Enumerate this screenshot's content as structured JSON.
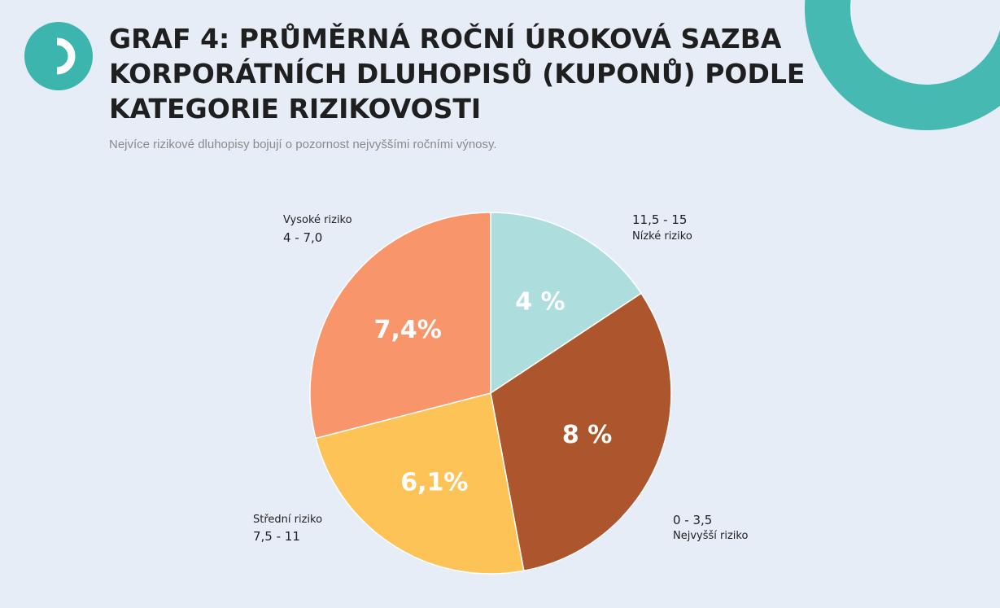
{
  "header": {
    "title": "GRAF 4: PRŮMĚRNÁ ROČNÍ ÚROKOVÁ SAZBA KORPORÁTNÍCH DLUHOPISŮ (KUPONŮ) PODLE KATEGORIE RIZIKOVOSTI",
    "subtitle": "Nejvíce rizikové dluhopisy bojují o pozornost nejvyššími ročními výnosy."
  },
  "colors": {
    "background": "#e6edf7",
    "accent": "#3bb5ae",
    "deco_ring": "#45b9b2"
  },
  "icons": {
    "logo": "brand-logo-icon",
    "decoration": "ring-decoration-icon"
  },
  "chart_data": {
    "type": "pie",
    "slices": [
      {
        "name": "Nízké riziko",
        "range": "11,5 - 15",
        "value": 4,
        "label": "4 %",
        "color": "#addedd"
      },
      {
        "name": "Nejvyšší riziko",
        "range": "0 - 3,5",
        "value": 8,
        "label": "8 %",
        "color": "#ad552c"
      },
      {
        "name": "Střední riziko",
        "range": "7,5 - 11",
        "value": 6.1,
        "label": "6,1%",
        "color": "#fec357"
      },
      {
        "name": "Vysoké riziko",
        "range": "4 - 7,0",
        "value": 7.4,
        "label": "7,4%",
        "color": "#f8956a"
      }
    ]
  }
}
